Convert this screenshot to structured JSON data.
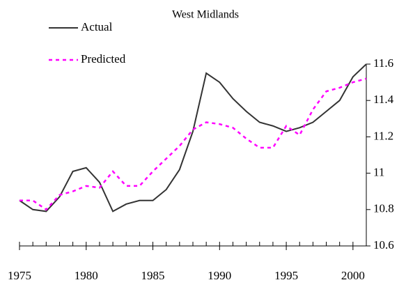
{
  "chart_data": {
    "type": "line",
    "title": "West Midlands",
    "x": [
      1975,
      1976,
      1977,
      1978,
      1979,
      1980,
      1981,
      1982,
      1983,
      1984,
      1985,
      1986,
      1987,
      1988,
      1989,
      1990,
      1991,
      1992,
      1993,
      1994,
      1995,
      1996,
      1997,
      1998,
      1999,
      2000,
      2001
    ],
    "series": [
      {
        "name": "Actual",
        "color": "#333333",
        "dash": false,
        "values": [
          10.85,
          10.8,
          10.79,
          10.87,
          11.01,
          11.03,
          10.95,
          10.79,
          10.83,
          10.85,
          10.85,
          10.91,
          11.02,
          11.23,
          11.55,
          11.5,
          11.41,
          11.34,
          11.28,
          11.26,
          11.23,
          11.25,
          11.28,
          11.34,
          11.4,
          11.53,
          11.6
        ]
      },
      {
        "name": "Predicted",
        "color": "#ff00ff",
        "dash": true,
        "values": [
          10.85,
          10.85,
          10.8,
          10.88,
          10.9,
          10.93,
          10.92,
          11.01,
          10.93,
          10.93,
          11.01,
          11.08,
          11.15,
          11.24,
          11.28,
          11.27,
          11.25,
          11.19,
          11.14,
          11.14,
          11.26,
          11.21,
          11.35,
          11.45,
          11.47,
          11.5,
          11.52
        ]
      }
    ],
    "xlim": [
      1975,
      2001
    ],
    "xticks": [
      1975,
      1980,
      1985,
      1990,
      1995,
      2000
    ],
    "ylim": [
      10.6,
      11.6
    ],
    "yticks": [
      10.6,
      10.8,
      11,
      11.2,
      11.4,
      11.6
    ],
    "legend": "upper left"
  }
}
